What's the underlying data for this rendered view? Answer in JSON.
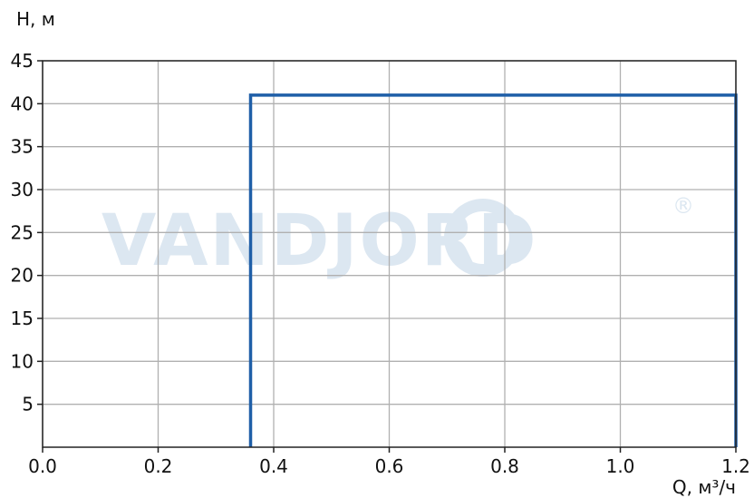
{
  "chart_data": {
    "type": "line",
    "xlabel": "Q, м³/ч",
    "ylabel": "H, м",
    "xlim": [
      0,
      1.2
    ],
    "ylim": [
      0,
      45
    ],
    "x_ticks": [
      0.0,
      0.2,
      0.4,
      0.6,
      0.8,
      1.0,
      1.2
    ],
    "x_tick_labels": [
      "0.0",
      "0.2",
      "0.4",
      "0.6",
      "0.8",
      "1.0",
      "1.2"
    ],
    "y_ticks": [
      5,
      10,
      15,
      20,
      25,
      30,
      35,
      40,
      45
    ],
    "y_tick_labels": [
      "5",
      "10",
      "15",
      "20",
      "25",
      "30",
      "35",
      "40",
      "45"
    ],
    "grid": true,
    "series": [
      {
        "color": "#1f5fa8",
        "x": [
          0.36,
          0.36,
          1.2,
          1.2
        ],
        "y": [
          0,
          41,
          41,
          0
        ]
      }
    ],
    "watermark": "VANDJORD",
    "watermark_mark": "®"
  }
}
